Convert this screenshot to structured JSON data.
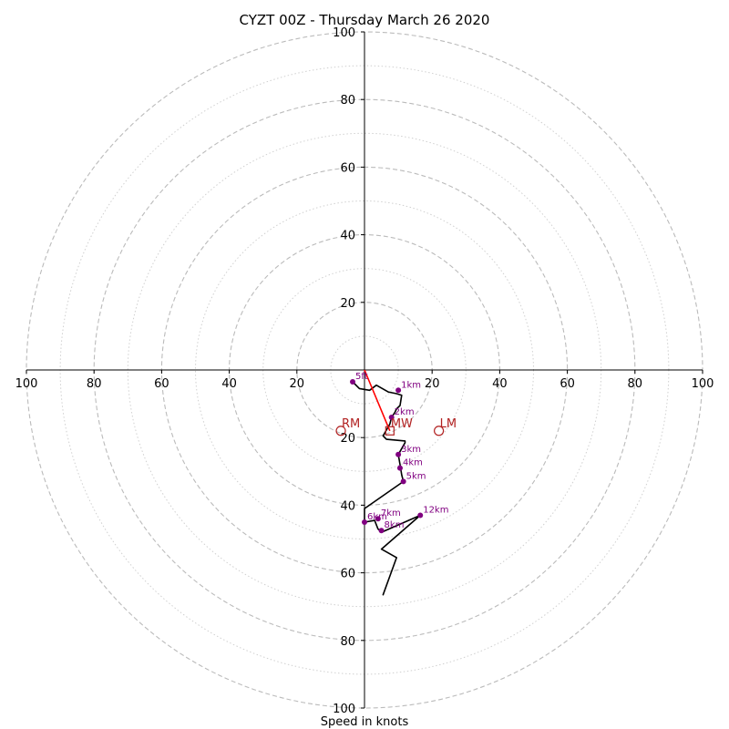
{
  "chart_data": {
    "type": "hodograph",
    "title": "CYZT 00Z - Thursday March 26 2020",
    "xlabel": "Speed in knots",
    "range": 100,
    "rings_major": [
      20,
      40,
      60,
      80,
      100
    ],
    "rings_minor": [
      10,
      30,
      50,
      70,
      90
    ],
    "x_ticks": [
      {
        "value": -100,
        "label": "100"
      },
      {
        "value": -80,
        "label": "80"
      },
      {
        "value": -60,
        "label": "60"
      },
      {
        "value": -40,
        "label": "40"
      },
      {
        "value": -20,
        "label": "20"
      },
      {
        "value": 20,
        "label": "20"
      },
      {
        "value": 40,
        "label": "40"
      },
      {
        "value": 60,
        "label": "60"
      },
      {
        "value": 80,
        "label": "80"
      },
      {
        "value": 100,
        "label": "100"
      }
    ],
    "y_ticks": [
      {
        "value": 100,
        "label": "100"
      },
      {
        "value": 80,
        "label": "80"
      },
      {
        "value": 60,
        "label": "60"
      },
      {
        "value": 40,
        "label": "40"
      },
      {
        "value": 20,
        "label": "20"
      },
      {
        "value": -20,
        "label": "20"
      },
      {
        "value": -40,
        "label": "40"
      },
      {
        "value": -60,
        "label": "60"
      },
      {
        "value": -80,
        "label": "80"
      },
      {
        "value": -100,
        "label": "100"
      }
    ],
    "trace": [
      [
        -3.5,
        -3.5
      ],
      [
        -1.5,
        -5.5
      ],
      [
        1.5,
        -6
      ],
      [
        3.5,
        -4.5
      ],
      [
        7,
        -6.5
      ],
      [
        9.5,
        -7
      ],
      [
        11,
        -7.5
      ],
      [
        10.5,
        -10.5
      ],
      [
        9.5,
        -11.5
      ],
      [
        9,
        -12.5
      ],
      [
        8,
        -14
      ],
      [
        7.5,
        -16
      ],
      [
        5.5,
        -19.5
      ],
      [
        6.5,
        -20.5
      ],
      [
        12,
        -21
      ],
      [
        12,
        -21.5
      ],
      [
        10,
        -25
      ],
      [
        10.5,
        -28
      ],
      [
        11,
        -31
      ],
      [
        11.5,
        -33
      ],
      [
        0,
        -41
      ],
      [
        0,
        -45
      ],
      [
        3,
        -44.5
      ],
      [
        4,
        -47
      ],
      [
        5,
        -48
      ],
      [
        16.5,
        -43
      ],
      [
        5,
        -53
      ],
      [
        9.5,
        -55.5
      ],
      [
        5.5,
        -66.5
      ],
      [
        9.5,
        -55.5
      ]
    ],
    "height_markers": [
      {
        "label": "5ft",
        "x": -3.5,
        "y": -3.5
      },
      {
        "label": "1km",
        "x": 10,
        "y": -6
      },
      {
        "label": "2km",
        "x": 8,
        "y": -14
      },
      {
        "label": "3km",
        "x": 10,
        "y": -25
      },
      {
        "label": "4km",
        "x": 10.5,
        "y": -29
      },
      {
        "label": "5km",
        "x": 11.5,
        "y": -33
      },
      {
        "label": "6km",
        "x": 0,
        "y": -45
      },
      {
        "label": "7km",
        "x": 4,
        "y": -44
      },
      {
        "label": "8km",
        "x": 5,
        "y": -47.5
      },
      {
        "label": "12km",
        "x": 16.5,
        "y": -43
      }
    ],
    "storm_motion": [
      {
        "label": "RM",
        "x": -7,
        "y": -18,
        "marker": "circle"
      },
      {
        "label": "MW",
        "x": 7.5,
        "y": -18,
        "marker": "square"
      },
      {
        "label": "LM",
        "x": 22,
        "y": -18,
        "marker": "circle"
      }
    ],
    "shear_vector": {
      "from": [
        0,
        0
      ],
      "to": [
        7.5,
        -18
      ]
    },
    "colors": {
      "trace": "#000000",
      "markers": "#800080",
      "storm_motion": "#b22222",
      "shear": "#ff0000",
      "rings": "#bbbbbb",
      "minor_rings": "#d0d0d0"
    }
  }
}
